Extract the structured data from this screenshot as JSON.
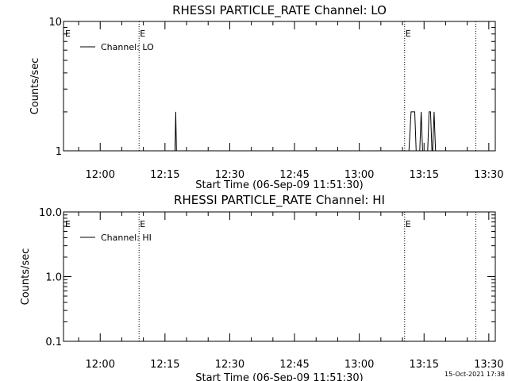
{
  "chart_data": [
    {
      "type": "line",
      "title": "RHESSI PARTICLE_RATE Channel: LO",
      "xlabel": "Start Time (06-Sep-09 11:51:30)",
      "ylabel": "Counts/sec",
      "yscale": "log",
      "ylim": [
        1,
        10
      ],
      "xlim": [
        "11:51:30",
        "13:31:30"
      ],
      "ytick_labels": [
        "1",
        "10"
      ],
      "xtick_labels": [
        "12:00",
        "12:15",
        "12:30",
        "12:45",
        "13:00",
        "13:15",
        "13:30"
      ],
      "legend": {
        "position": "top-left",
        "label": "Channel: LO"
      },
      "event_markers": [
        {
          "time": "12:09:00",
          "label": "E"
        },
        {
          "time": "13:10:30",
          "label": "E"
        },
        {
          "time": "13:27:00",
          "label": ""
        }
      ],
      "boundary_marker_label": "E",
      "series": [
        {
          "name": "Channel: LO",
          "points": [
            [
              "12:17:20",
              1
            ],
            [
              "12:17:30",
              2
            ],
            [
              "12:17:40",
              1
            ],
            [
              "13:11:30",
              1
            ],
            [
              "13:12:00",
              2
            ],
            [
              "13:12:50",
              2
            ],
            [
              "13:13:10",
              1
            ],
            [
              "13:14:00",
              1
            ],
            [
              "13:14:20",
              2
            ],
            [
              "13:14:40",
              1
            ],
            [
              "13:15:50",
              1
            ],
            [
              "13:16:10",
              2
            ],
            [
              "13:16:30",
              2
            ],
            [
              "13:16:50",
              1
            ],
            [
              "13:17:00",
              1
            ],
            [
              "13:17:20",
              2
            ],
            [
              "13:17:40",
              1
            ]
          ]
        }
      ]
    },
    {
      "type": "line",
      "title": "RHESSI PARTICLE_RATE Channel: HI",
      "xlabel": "Start Time (06-Sep-09 11:51:30)",
      "ylabel": "Counts/sec",
      "yscale": "log",
      "ylim": [
        0.1,
        10
      ],
      "xlim": [
        "11:51:30",
        "13:31:30"
      ],
      "ytick_labels": [
        "0.1",
        "1.0",
        "10.0"
      ],
      "xtick_labels": [
        "12:00",
        "12:15",
        "12:30",
        "12:45",
        "13:00",
        "13:15",
        "13:30"
      ],
      "legend": {
        "position": "top-left",
        "label": "Channel: HI"
      },
      "event_markers": [
        {
          "time": "12:09:00",
          "label": "E"
        },
        {
          "time": "13:10:30",
          "label": "E"
        },
        {
          "time": "13:27:00",
          "label": ""
        }
      ],
      "boundary_marker_label": "E",
      "series": [
        {
          "name": "Channel: HI",
          "points": []
        }
      ]
    }
  ],
  "footer": {
    "timestamp": "15-Oct-2021 17:38"
  }
}
